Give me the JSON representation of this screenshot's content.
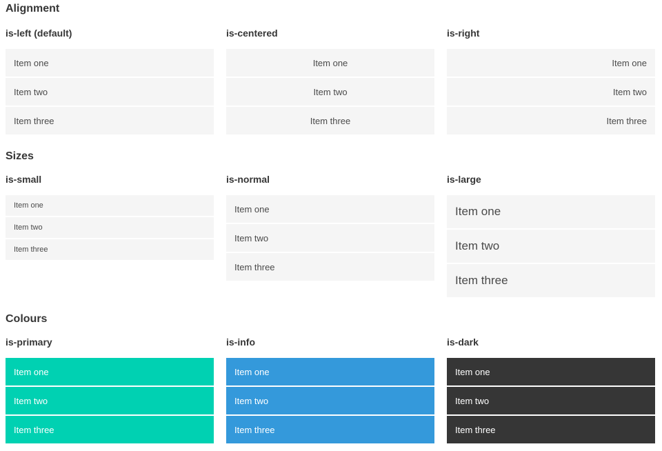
{
  "colors": {
    "page_background": "#ffffff",
    "item_background_light": "#f5f5f5",
    "primary": "#00d1b2",
    "info": "#3499db",
    "dark": "#363636",
    "heading_text": "#363636",
    "item_text": "#4a4a4a",
    "item_text_on_color": "#ffffff"
  },
  "sections": [
    {
      "title": "Alignment",
      "columns": [
        {
          "heading": "is-left (default)",
          "items": [
            "Item one",
            "Item two",
            "Item three"
          ]
        },
        {
          "heading": "is-centered",
          "items": [
            "Item one",
            "Item two",
            "Item three"
          ]
        },
        {
          "heading": "is-right",
          "items": [
            "Item one",
            "Item two",
            "Item three"
          ]
        }
      ]
    },
    {
      "title": "Sizes",
      "columns": [
        {
          "heading": "is-small",
          "items": [
            "Item one",
            "Item two",
            "Item three"
          ]
        },
        {
          "heading": "is-normal",
          "items": [
            "Item one",
            "Item two",
            "Item three"
          ]
        },
        {
          "heading": "is-large",
          "items": [
            "Item one",
            "Item two",
            "Item three"
          ]
        }
      ]
    },
    {
      "title": "Colours",
      "columns": [
        {
          "heading": "is-primary",
          "items": [
            "Item one",
            "Item two",
            "Item three"
          ]
        },
        {
          "heading": "is-info",
          "items": [
            "Item one",
            "Item two",
            "Item three"
          ]
        },
        {
          "heading": "is-dark",
          "items": [
            "Item one",
            "Item two",
            "Item three"
          ]
        }
      ]
    }
  ]
}
